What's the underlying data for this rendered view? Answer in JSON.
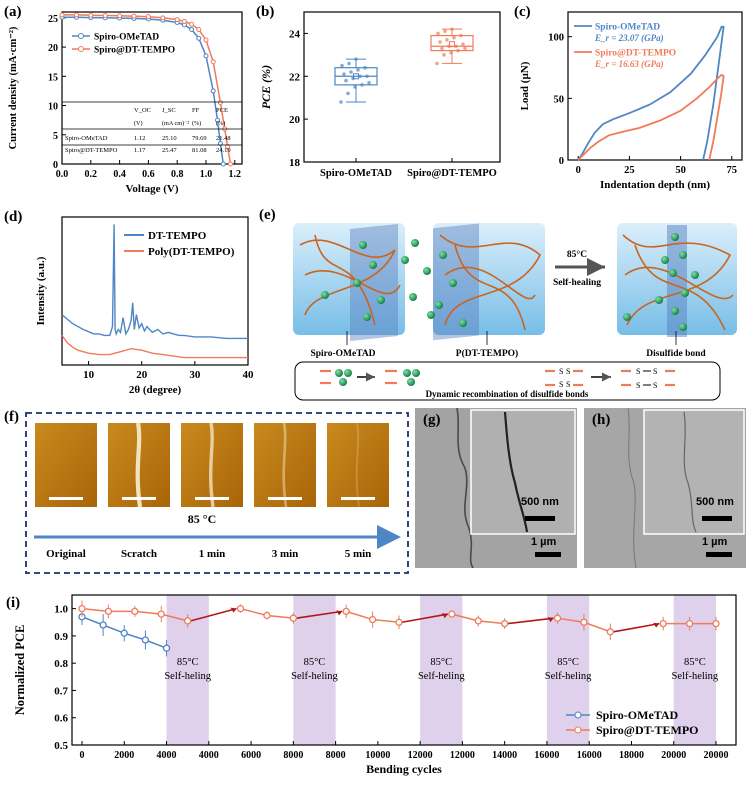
{
  "panel_labels": {
    "a": "(a)",
    "b": "(b)",
    "c": "(c)",
    "d": "(d)",
    "e": "(e)",
    "f": "(f)",
    "g": "(g)",
    "h": "(h)",
    "i": "(i)"
  },
  "colors": {
    "blue": "#4f86c6",
    "orange": "#f07b5a",
    "dark_orange": "#c9651e",
    "green": "#1e9a50",
    "purple_band": "#d9c8e8",
    "red_arrow": "#b01818",
    "navy": "#1c2e6e"
  },
  "chart_data": [
    {
      "id": "a",
      "type": "line",
      "xlabel": "Voltage (V)",
      "ylabel": "Current density (mA·cm⁻²)",
      "xlim": [
        0,
        1.25
      ],
      "ylim": [
        0,
        26
      ],
      "xticks": [
        "0.0",
        "0.2",
        "0.4",
        "0.6",
        "0.8",
        "1.0",
        "1.2"
      ],
      "yticks": [
        "0",
        "5",
        "10",
        "15",
        "20",
        "25"
      ],
      "legend": [
        "Spiro-OMeTAD",
        "Spiro@DT-TEMPO"
      ],
      "series": [
        {
          "name": "Spiro-OMeTAD",
          "x": [
            0,
            0.1,
            0.2,
            0.3,
            0.4,
            0.5,
            0.6,
            0.7,
            0.8,
            0.85,
            0.9,
            0.95,
            1.0,
            1.05,
            1.08,
            1.1,
            1.12
          ],
          "y": [
            25.1,
            25.1,
            25.05,
            25.0,
            24.95,
            24.9,
            24.8,
            24.6,
            24.2,
            23.8,
            23.0,
            21.5,
            18.5,
            12.5,
            7.5,
            3.5,
            0
          ]
        },
        {
          "name": "Spiro@DT-TEMPO",
          "x": [
            0,
            0.1,
            0.2,
            0.3,
            0.4,
            0.5,
            0.6,
            0.7,
            0.8,
            0.85,
            0.9,
            0.95,
            1.0,
            1.05,
            1.1,
            1.13,
            1.15,
            1.17
          ],
          "y": [
            25.5,
            25.5,
            25.45,
            25.4,
            25.35,
            25.3,
            25.2,
            25.0,
            24.7,
            24.4,
            23.9,
            23.0,
            21.2,
            17.5,
            10.5,
            6.0,
            3.0,
            0
          ]
        }
      ],
      "table": {
        "headers": [
          "",
          "V_OC",
          "J_SC",
          "FF",
          "PCE"
        ],
        "units": [
          "",
          "(V)",
          "(mA cm)⁻²",
          "(%)",
          "(%)"
        ],
        "rows": [
          [
            "Spiro-OMeTAD",
            "1.12",
            "25.10",
            "79.69",
            "21.48"
          ],
          [
            "Spiro@DT-TEMPO",
            "1.17",
            "25.47",
            "81.08",
            "24.19"
          ]
        ]
      }
    },
    {
      "id": "b",
      "type": "box",
      "ylabel": "PCE (%)",
      "ylim": [
        18,
        25
      ],
      "yticks": [
        "18",
        "20",
        "22",
        "24"
      ],
      "categories": [
        "Spiro-OMeTAD",
        "Spiro@DT-TEMPO"
      ],
      "boxes": [
        {
          "name": "Spiro-OMeTAD",
          "min": 20.8,
          "q1": 21.6,
          "median": 22.0,
          "mean": 22.0,
          "q3": 22.4,
          "max": 22.8,
          "points": [
            20.8,
            21.2,
            21.5,
            21.6,
            21.7,
            21.8,
            21.9,
            22.0,
            22.0,
            22.1,
            22.2,
            22.3,
            22.4,
            22.5,
            22.6,
            22.8
          ]
        },
        {
          "name": "Spiro@DT-TEMPO",
          "min": 22.6,
          "q1": 23.2,
          "median": 23.4,
          "mean": 23.5,
          "q3": 23.9,
          "max": 24.2,
          "points": [
            22.6,
            23.0,
            23.1,
            23.2,
            23.3,
            23.3,
            23.4,
            23.4,
            23.5,
            23.6,
            23.7,
            23.8,
            23.9,
            24.0,
            24.1,
            24.2
          ]
        }
      ]
    },
    {
      "id": "c",
      "type": "line",
      "xlabel": "Indentation depth (nm)",
      "ylabel": "Load (µN)",
      "xlim": [
        -5,
        80
      ],
      "ylim": [
        0,
        120
      ],
      "xticks": [
        "0",
        "25",
        "50",
        "75"
      ],
      "yticks": [
        "0",
        "50",
        "100"
      ],
      "legend": [
        "Spiro-OMeTAD",
        "Spiro@DT-TEMPO"
      ],
      "legend_sub": [
        "E_r = 23.07 (GPa)",
        "E_r = 16.63 (GPa)"
      ],
      "series": [
        {
          "name": "Spiro-OMeTAD",
          "x": [
            0,
            2,
            5,
            8,
            12,
            17,
            25,
            35,
            45,
            55,
            62,
            68,
            70,
            71,
            70,
            68,
            66,
            63,
            61
          ],
          "y": [
            0,
            5,
            14,
            22,
            29,
            33,
            38,
            45,
            55,
            70,
            85,
            100,
            108,
            108,
            95,
            70,
            45,
            15,
            0
          ]
        },
        {
          "name": "Spiro@DT-TEMPO",
          "x": [
            0,
            3,
            6,
            10,
            15,
            22,
            30,
            40,
            50,
            58,
            64,
            68,
            70,
            71,
            70,
            68,
            66,
            64
          ],
          "y": [
            0,
            5,
            10,
            15,
            20,
            23,
            26,
            32,
            40,
            50,
            59,
            66,
            69,
            68,
            55,
            35,
            15,
            0
          ]
        }
      ]
    },
    {
      "id": "d",
      "type": "line",
      "xlabel": "2θ (degree)",
      "ylabel": "Intensity (a.u.)",
      "xlim": [
        5,
        40
      ],
      "xticks": [
        "10",
        "20",
        "30",
        "40"
      ],
      "legend": [
        "DT-TEMPO",
        "Poly(DT-TEMPO)"
      ],
      "series": [
        {
          "name": "DT-TEMPO",
          "x": [
            5,
            7,
            9,
            11,
            12,
            13,
            14,
            14.5,
            14.8,
            15,
            15.2,
            15.6,
            16,
            16.5,
            17,
            17.5,
            18,
            18.3,
            18.6,
            19,
            19.5,
            20,
            20.5,
            21,
            22,
            23,
            24,
            25,
            26,
            27,
            28,
            30,
            33,
            36,
            40
          ],
          "y": [
            34,
            28,
            24,
            21,
            21,
            20,
            20,
            26,
            95,
            24,
            21,
            24,
            22,
            32,
            21,
            24,
            30,
            42,
            24,
            34,
            25,
            28,
            23,
            26,
            22,
            24,
            21,
            22,
            21,
            20,
            20,
            19,
            19,
            18,
            18
          ]
        },
        {
          "name": "Poly(DT-TEMPO)",
          "x": [
            5,
            6,
            7,
            8,
            10,
            12,
            14,
            16,
            18,
            20,
            22,
            24,
            26,
            28,
            30,
            33,
            36,
            40
          ],
          "y": [
            20,
            15,
            12,
            10,
            8,
            7,
            7,
            9,
            11,
            10,
            8,
            7,
            6,
            5,
            5,
            5,
            5,
            5
          ]
        }
      ]
    },
    {
      "id": "i",
      "type": "line",
      "xlabel": "Bending cycles",
      "ylabel": "Normalized PCE",
      "ylim": [
        0.5,
        1.05
      ],
      "yticks": [
        "0.5",
        "0.6",
        "0.7",
        "0.8",
        "0.9",
        "1.0"
      ],
      "xticks": [
        "0",
        "2000",
        "4000",
        "4000",
        "6000",
        "8000",
        "8000",
        "10000",
        "12000",
        "12000",
        "14000",
        "16000",
        "16000",
        "18000",
        "20000",
        "20000"
      ],
      "legend": [
        "Spiro-OMeTAD",
        "Spiro@DT-TEMPO"
      ],
      "band_labels": [
        "85°C",
        "Self-heling"
      ],
      "series": [
        {
          "name": "Spiro-OMeTAD",
          "idx": [
            0,
            1,
            2,
            3,
            4
          ],
          "y": [
            0.97,
            0.94,
            0.91,
            0.885,
            0.855
          ],
          "err": [
            0.03,
            0.04,
            0.03,
            0.035,
            0.03
          ]
        },
        {
          "name": "Spiro@DT-TEMPO",
          "idx": [
            0,
            1,
            2,
            3,
            4,
            5,
            6,
            7,
            8,
            9,
            10,
            11,
            12,
            13,
            14,
            15,
            16,
            17,
            18,
            19
          ],
          "y": [
            1.0,
            0.99,
            0.99,
            0.98,
            0.955,
            1.0,
            0.975,
            0.965,
            0.99,
            0.96,
            0.95,
            0.98,
            0.955,
            0.945,
            0.965,
            0.95,
            0.915,
            0.945,
            0.945,
            0.945
          ],
          "err": [
            0.03,
            0.025,
            0.02,
            0.03,
            0.025,
            0.015,
            0.015,
            0.02,
            0.025,
            0.03,
            0.025,
            0.01,
            0.02,
            0.02,
            0.02,
            0.03,
            0.03,
            0.025,
            0.025,
            0.025
          ]
        }
      ]
    }
  ],
  "panel_e": {
    "label_left": "Spiro-OMeTAD",
    "label_mid": "P(DT-TEMPO)",
    "label_right": "Disulfide bond",
    "arrow_top": "85°C",
    "arrow_bottom": "Self-healing",
    "dynamic_caption": "Dynamic recombination of disulfide bonds",
    "s_letter": "S"
  },
  "panel_f": {
    "temperature": "85 °C",
    "labels": [
      "Original",
      "Scratch",
      "1 min",
      "3 min",
      "5 min"
    ]
  },
  "panel_g": {
    "inset_scale": "500 nm",
    "scale": "1 µm"
  },
  "panel_h": {
    "inset_scale": "500 nm",
    "scale": "1 µm"
  }
}
